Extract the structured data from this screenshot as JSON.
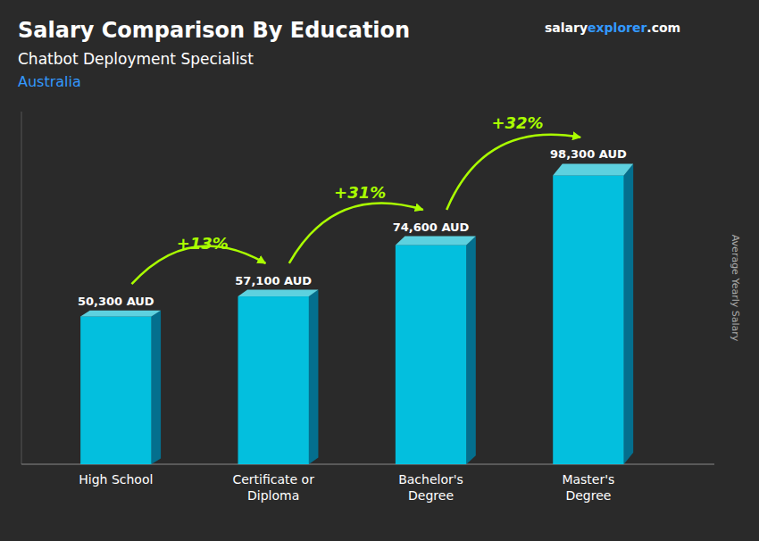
{
  "chart_data": {
    "type": "bar",
    "title": "Salary Comparison By Education",
    "subtitle": [
      "Chatbot Deployment Specialist",
      "Australia"
    ],
    "categories": [
      "High School",
      "Certificate or\nDiploma",
      "Bachelor's\nDegree",
      "Master's\nDegree"
    ],
    "values": [
      50300,
      57100,
      74600,
      98300
    ],
    "value_labels": [
      "50,300 AUD",
      "57,100 AUD",
      "74,600 AUD",
      "98,300 AUD"
    ],
    "data_labels": true,
    "annotations": [
      "+13%",
      "+31%",
      "+32%"
    ],
    "annotation_color": "#aaff00",
    "brand": [
      {
        "text": "salary",
        "color": "#ffffff"
      },
      {
        "text": "explorer",
        "color": "#3399ff"
      },
      {
        "text": ".com",
        "color": "#ffffff"
      }
    ],
    "ylabel": "Average Yearly Salary",
    "color": "#00ccee",
    "ylim": [
      0,
      120000
    ],
    "tick_labels": "x",
    "grid": false
  }
}
